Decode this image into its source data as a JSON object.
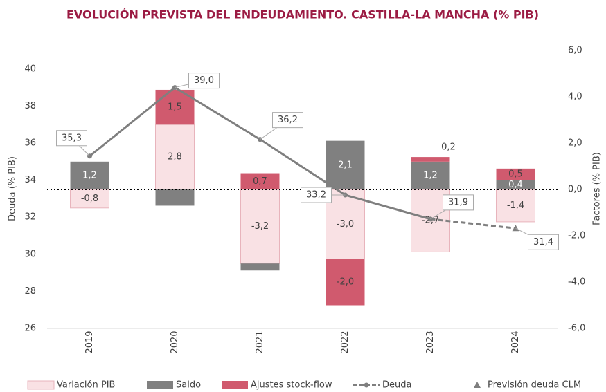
{
  "chart_data": {
    "type": "bar-line",
    "title": "EVOLUCIÓN PREVISTA DEL ENDEUDAMIENTO. CASTILLA-LA MANCHA (% PIB)",
    "y_label": "Deuda (% PIB)",
    "y2_label": "Factores (% PIB)",
    "categories": [
      "2019",
      "2020",
      "2021",
      "2022",
      "2023",
      "2024"
    ],
    "ylim": [
      26,
      41
    ],
    "yticks": [
      26,
      28,
      30,
      32,
      34,
      36,
      38,
      40
    ],
    "y2lim": [
      -6,
      6
    ],
    "y2ticks": [
      {
        "value": -6,
        "label": "-6,0"
      },
      {
        "value": -4,
        "label": "-4,0"
      },
      {
        "value": -2,
        "label": "-2,0"
      },
      {
        "value": 0,
        "label": "0,0"
      },
      {
        "value": 2,
        "label": "2,0"
      },
      {
        "value": 4,
        "label": "4,0"
      },
      {
        "value": 6,
        "label": "6,0"
      }
    ],
    "series": [
      {
        "name": "Variación PIB",
        "kind": "bar",
        "axis": "y2",
        "color": "#f9e1e4",
        "values": [
          -0.8,
          2.8,
          -3.2,
          -3.0,
          -2.7,
          -1.4
        ],
        "value_labels": [
          "-0,8",
          "2,8",
          "-3,2",
          "-3,0",
          "-2,7",
          "-1,4"
        ]
      },
      {
        "name": "Saldo",
        "kind": "bar",
        "axis": "y2",
        "color": "#808080",
        "values": [
          1.2,
          -0.7,
          -0.3,
          2.1,
          1.2,
          0.4
        ],
        "value_labels": [
          "1,2",
          null,
          null,
          "2,1",
          "1,2",
          "0,4"
        ]
      },
      {
        "name": "Ajustes stock-flow",
        "kind": "bar",
        "axis": "y2",
        "color": "#d05a6e",
        "values": [
          null,
          1.5,
          0.7,
          -2.0,
          0.2,
          0.5
        ],
        "value_labels": [
          null,
          "1,5",
          "0,7",
          "-2,0",
          "0,2",
          "0,5"
        ]
      },
      {
        "name": "Deuda",
        "kind": "line",
        "color": "#7f7f7f",
        "values": [
          35.3,
          39.0,
          36.2,
          33.2,
          31.9,
          null
        ],
        "value_labels": [
          "35,3",
          "39,0",
          "36,2",
          "33,2",
          "31,9",
          null
        ]
      },
      {
        "name": "Previsión deuda CLM",
        "kind": "marker",
        "color": "#7f7f7f",
        "values": [
          null,
          null,
          null,
          null,
          null,
          31.4
        ],
        "value_labels": [
          null,
          null,
          null,
          null,
          null,
          "31,4"
        ]
      }
    ]
  }
}
